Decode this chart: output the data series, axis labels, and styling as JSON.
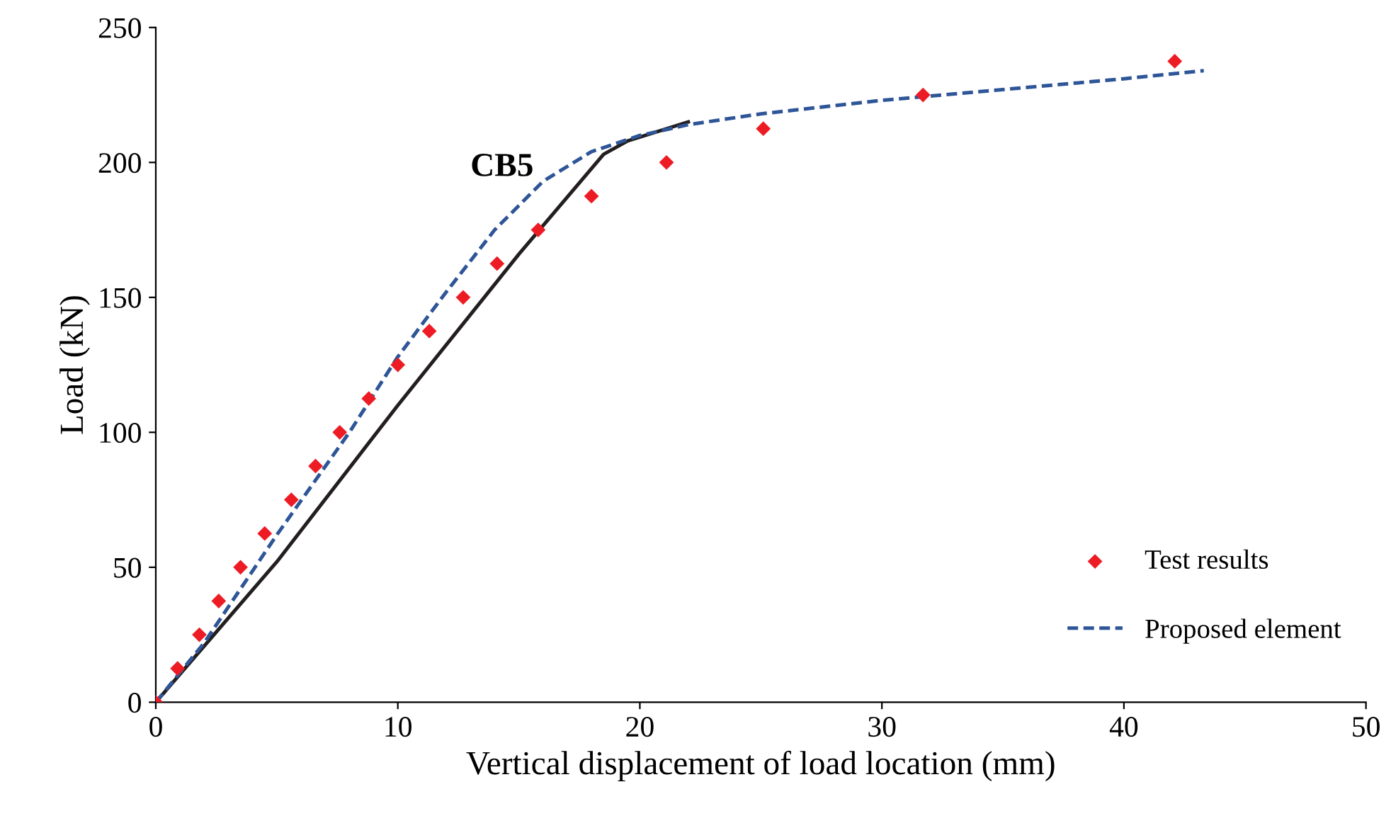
{
  "chart_data": {
    "type": "line",
    "xlabel": "Vertical displacement of load location (mm)",
    "ylabel": "Load (kN)",
    "annotations": [
      "CB5"
    ],
    "xlim": [
      0,
      50
    ],
    "xticks": [
      0,
      10,
      20,
      30,
      40,
      50
    ],
    "ylim": [
      0,
      250
    ],
    "yticks": [
      0,
      50,
      100,
      150,
      200,
      250
    ],
    "grid": false,
    "legend": "bottom right",
    "series": [
      {
        "name": "Test results",
        "type": "scatter",
        "marker": "diamond",
        "color": "#ed1c24",
        "x": [
          0,
          0.9,
          1.8,
          2.6,
          3.5,
          4.5,
          5.6,
          6.6,
          7.6,
          8.8,
          10,
          11.3,
          12.7,
          14.1,
          15.8,
          18,
          21.1,
          25.1,
          31.7,
          42.1
        ],
        "values": [
          0,
          12.5,
          25,
          37.5,
          50,
          62.5,
          75,
          87.5,
          100,
          112.5,
          125,
          137.5,
          150,
          162.5,
          175,
          187.5,
          200,
          212.5,
          225,
          237.5
        ]
      },
      {
        "type": "line",
        "line_style": "solid",
        "color": "#231f20",
        "x": [
          0,
          5,
          10,
          15,
          18.5,
          19.5,
          22
        ],
        "values": [
          0,
          52,
          110,
          166,
          203,
          208,
          215
        ]
      },
      {
        "name": "Proposed element",
        "type": "line",
        "line_style": "dashed",
        "color": "#2e5597",
        "x": [
          0,
          2,
          5,
          8,
          10,
          12,
          14,
          16,
          18,
          20,
          22,
          25,
          30,
          35,
          40,
          43.3
        ],
        "values": [
          0,
          22,
          62,
          100,
          128,
          152,
          175,
          193,
          204,
          210,
          214,
          218,
          223,
          227,
          231,
          234
        ]
      }
    ]
  }
}
